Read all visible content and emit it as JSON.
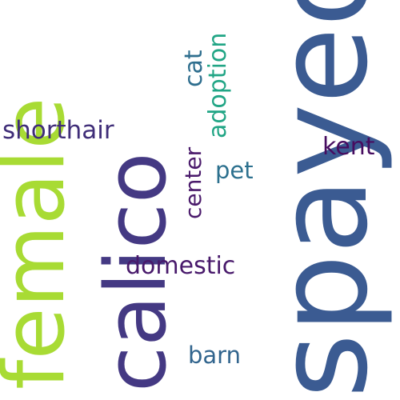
{
  "words": {
    "spayed": {
      "text": "spayed",
      "color": "#3b5b92"
    },
    "calico": {
      "text": "calico",
      "color": "#443983"
    },
    "female": {
      "text": "female",
      "color": "#a8db34"
    },
    "adoption": {
      "text": "adoption",
      "color": "#21a585"
    },
    "cat": {
      "text": "cat",
      "color": "#2e6e8e"
    },
    "shorthair": {
      "text": "shorthair",
      "color": "#3f2d78"
    },
    "kent": {
      "text": "kent",
      "color": "#470d60"
    },
    "center": {
      "text": "center",
      "color": "#4a1a6b"
    },
    "pet": {
      "text": "pet",
      "color": "#2c708e"
    },
    "domestic": {
      "text": "domestic",
      "color": "#48196b"
    },
    "barn": {
      "text": "barn",
      "color": "#32658e"
    }
  }
}
